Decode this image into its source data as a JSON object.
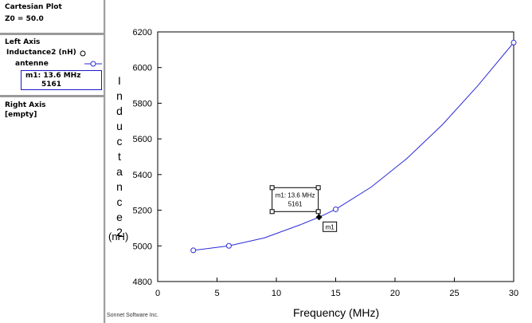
{
  "sidebar": {
    "plot_title": "Cartesian Plot",
    "z0": "Z0 = 50.0",
    "left_axis_title": "Left Axis",
    "left_param": "Inductance2 (nH)",
    "left_series": "antenne",
    "marker_line1": "m1: 13.6 MHz",
    "marker_line2": "5161",
    "right_axis_title": "Right Axis",
    "right_empty": "[empty]",
    "series_color": "#2a2ad6"
  },
  "footer": "Sonnet Software Inc.",
  "chart_data": {
    "type": "line",
    "xlabel": "Frequency (MHz)",
    "ylabel": "Inductance2",
    "yunit": "(nH)",
    "xlim": [
      0,
      30
    ],
    "ylim": [
      4800,
      6200
    ],
    "xticks": [
      0,
      5,
      10,
      15,
      20,
      25,
      30
    ],
    "yticks": [
      4800,
      5000,
      5200,
      5400,
      5600,
      5800,
      6000,
      6200
    ],
    "grid": false,
    "series": [
      {
        "name": "antenne",
        "color": "#2a2ad6",
        "x": [
          3,
          6,
          9,
          12,
          13.6,
          15,
          18,
          21,
          24,
          27,
          30
        ],
        "y": [
          4975,
          5000,
          5045,
          5118,
          5161,
          5205,
          5330,
          5490,
          5680,
          5900,
          6140
        ],
        "circle_markers_x": [
          3,
          6,
          15,
          30
        ]
      }
    ],
    "markers": [
      {
        "name": "m1",
        "x": 13.6,
        "y": 5161,
        "label_line1": "m1: 13.6 MHz",
        "label_line2": "5161"
      }
    ]
  }
}
